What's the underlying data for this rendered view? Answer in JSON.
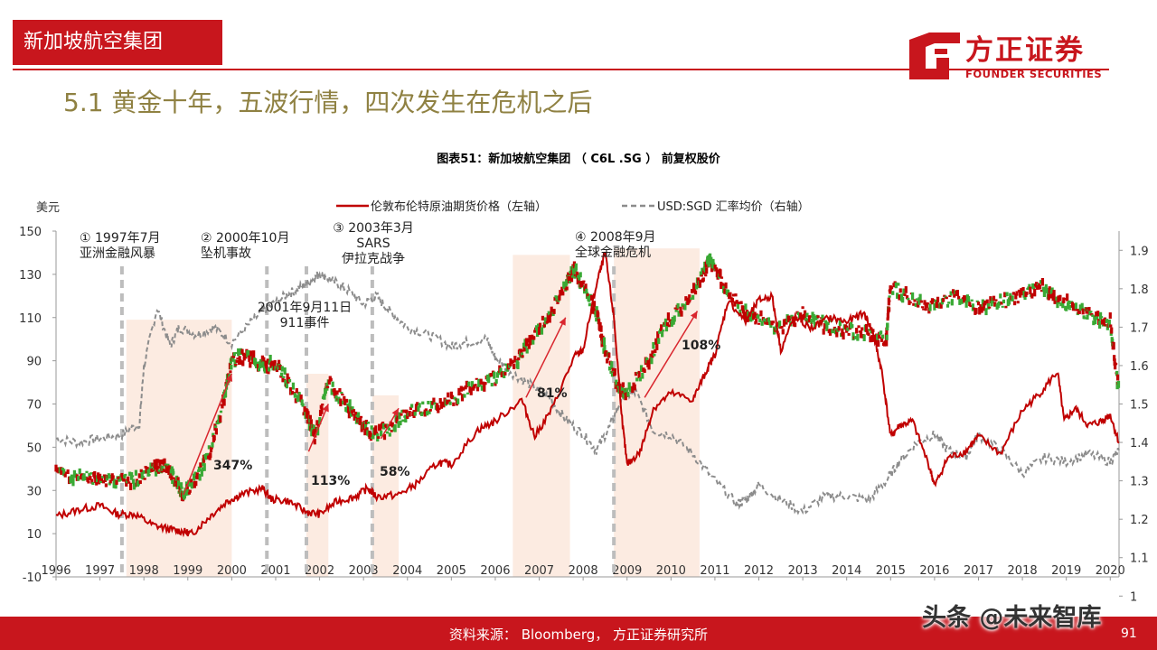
{
  "header": {
    "section_title": "新加坡航空集团",
    "logo_cn": "方正证券",
    "logo_en": "FOUNDER SECURITIES",
    "brand_color": "#c8161d"
  },
  "subtitle": "5.1 黄金十年，五波行情，四次发生在危机之后",
  "chart_title": "图表51：新加坡航空集团 （ C6L .SG ） 前复权股价",
  "footer": {
    "source": "资料来源：  Bloomberg，   方正证券研究所",
    "page": "91",
    "watermark": "头条 @未来智库"
  },
  "chart_data": {
    "type": "line",
    "left_axis_unit": "美元",
    "left_ylim": [
      -10,
      150
    ],
    "left_ticks": [
      "150",
      "130",
      "110",
      "90",
      "70",
      "50",
      "30",
      "10",
      "-10"
    ],
    "right_ylim": [
      1.05,
      1.95
    ],
    "right_ticks": [
      "1.9",
      "1.8",
      "1.7",
      "1.6",
      "1.5",
      "1.4",
      "1.3",
      "1.2",
      "1.1",
      "1"
    ],
    "x_ticks": [
      "1996",
      "1997",
      "1998",
      "1999",
      "2000",
      "2001",
      "2002",
      "2003",
      "2004",
      "2005",
      "2006",
      "2007",
      "2008",
      "2009",
      "2010",
      "2011",
      "2012",
      "2013",
      "2014",
      "2015",
      "2016",
      "2017",
      "2018",
      "2019",
      "2020"
    ],
    "legend": [
      {
        "label": "伦敦布伦特原油期货价格（左轴）",
        "color": "#c00000",
        "style": "solid"
      },
      {
        "label": "USD:SGD 汇率均价（右轴）",
        "color": "#8c8c8c",
        "style": "dashed"
      }
    ],
    "series": [
      {
        "name": "伦敦布伦特原油期货价格（左轴）",
        "axis": "left",
        "x": [
          1996.0,
          1996.5,
          1997.0,
          1997.4,
          1997.8,
          1998.2,
          1998.6,
          1998.9,
          1999.1,
          1999.5,
          1999.9,
          2000.2,
          2000.7,
          2000.9,
          2001.3,
          2001.7,
          2002.0,
          2002.4,
          2002.8,
          2003.1,
          2003.3,
          2003.8,
          2004.2,
          2004.7,
          2005.0,
          2005.6,
          2006.0,
          2006.6,
          2006.9,
          2007.3,
          2007.8,
          2008.0,
          2008.3,
          2008.5,
          2008.7,
          2008.9,
          2009.0,
          2009.3,
          2009.6,
          2010.0,
          2010.5,
          2010.8,
          2011.0,
          2011.3,
          2011.7,
          2012.0,
          2012.3,
          2012.5,
          2012.8,
          2013.2,
          2013.6,
          2014.0,
          2014.4,
          2014.6,
          2014.8,
          2015.0,
          2015.2,
          2015.5,
          2015.9,
          2016.0,
          2016.3,
          2016.7,
          2017.0,
          2017.5,
          2018.0,
          2018.4,
          2018.8,
          2018.95,
          2019.2,
          2019.5,
          2019.8,
          2020.0,
          2020.2
        ],
        "values": [
          18,
          21,
          23,
          19,
          19,
          14,
          12,
          11,
          10,
          18,
          25,
          28,
          31,
          26,
          25,
          20,
          19,
          25,
          27,
          31,
          27,
          28,
          33,
          43,
          42,
          58,
          62,
          72,
          55,
          68,
          92,
          95,
          125,
          140,
          110,
          60,
          42,
          48,
          68,
          75,
          72,
          85,
          93,
          118,
          108,
          118,
          120,
          95,
          110,
          105,
          110,
          108,
          112,
          103,
          85,
          55,
          60,
          62,
          40,
          32,
          45,
          48,
          55,
          47,
          67,
          75,
          85,
          62,
          68,
          60,
          62,
          65,
          52
        ]
      },
      {
        "name": "USD:SGD 汇率均价（右轴）",
        "axis": "right",
        "x": [
          1996.0,
          1996.5,
          1997.0,
          1997.5,
          1997.9,
          1998.0,
          1998.3,
          1998.6,
          1998.8,
          1999.2,
          1999.6,
          2000.0,
          2000.5,
          2000.8,
          2001.2,
          2001.5,
          2001.8,
          2002.0,
          2002.3,
          2002.6,
          2003.0,
          2003.3,
          2003.6,
          2004.0,
          2004.5,
          2005.0,
          2005.3,
          2005.8,
          2006.0,
          2006.4,
          2006.8,
          2007.2,
          2007.6,
          2008.0,
          2008.3,
          2008.6,
          2008.9,
          2009.2,
          2009.6,
          2010.0,
          2010.5,
          2011.0,
          2011.5,
          2011.7,
          2012.0,
          2012.5,
          2013.0,
          2013.5,
          2014.0,
          2014.5,
          2014.9,
          2015.2,
          2015.6,
          2016.0,
          2016.3,
          2016.7,
          2017.0,
          2017.5,
          2018.0,
          2018.5,
          2019.0,
          2019.5,
          2020.0,
          2020.2
        ],
        "values": [
          1.41,
          1.4,
          1.41,
          1.42,
          1.45,
          1.6,
          1.75,
          1.65,
          1.7,
          1.68,
          1.7,
          1.66,
          1.72,
          1.75,
          1.78,
          1.8,
          1.82,
          1.84,
          1.82,
          1.8,
          1.76,
          1.78,
          1.74,
          1.7,
          1.68,
          1.65,
          1.66,
          1.67,
          1.62,
          1.58,
          1.55,
          1.52,
          1.46,
          1.42,
          1.38,
          1.44,
          1.52,
          1.53,
          1.43,
          1.42,
          1.37,
          1.3,
          1.24,
          1.25,
          1.29,
          1.25,
          1.22,
          1.26,
          1.26,
          1.25,
          1.3,
          1.35,
          1.4,
          1.42,
          1.38,
          1.36,
          1.42,
          1.38,
          1.32,
          1.36,
          1.35,
          1.37,
          1.35,
          1.38
        ]
      },
      {
        "name": "新加坡航空集团前复权股价",
        "axis": "left",
        "x": [
          1996.0,
          1996.6,
          1997.0,
          1997.4,
          1997.8,
          1998.2,
          1998.5,
          1998.7,
          1998.9,
          1999.2,
          1999.5,
          1999.8,
          2000.0,
          2000.3,
          2000.7,
          2001.0,
          2001.3,
          2001.7,
          2001.9,
          2002.2,
          2002.6,
          2002.9,
          2003.2,
          2003.6,
          2004.0,
          2004.5,
          2005.0,
          2005.5,
          2006.0,
          2006.5,
          2006.8,
          2007.2,
          2007.6,
          2007.8,
          2008.0,
          2008.3,
          2008.5,
          2008.8,
          2009.0,
          2009.5,
          2009.9,
          2010.3,
          2010.7,
          2010.9,
          2011.2,
          2011.7,
          2012.0,
          2012.5,
          2013.0,
          2013.5,
          2014.0,
          2014.5,
          2014.9,
          2015.0,
          2015.5,
          2016.0,
          2016.5,
          2017.0,
          2017.5,
          2018.0,
          2018.4,
          2018.8,
          2019.2,
          2019.6,
          2020.0,
          2020.2
        ],
        "values": [
          38,
          36,
          35,
          34,
          35,
          40,
          42,
          35,
          28,
          35,
          48,
          70,
          90,
          92,
          88,
          88,
          80,
          66,
          55,
          80,
          70,
          62,
          57,
          58,
          67,
          68,
          72,
          78,
          82,
          90,
          100,
          110,
          125,
          132,
          125,
          112,
          95,
          78,
          75,
          90,
          108,
          115,
          128,
          137,
          125,
          112,
          110,
          105,
          112,
          106,
          104,
          102,
          100,
          125,
          118,
          115,
          120,
          115,
          117,
          120,
          125,
          118,
          115,
          110,
          108,
          75
        ]
      }
    ],
    "annotations": [
      {
        "line1": "① 1997年7月",
        "line2": "亚洲金融风暴",
        "year": 1997.5
      },
      {
        "line1": "② 2000年10月",
        "line2": "坠机事故",
        "year": 2000.8
      },
      {
        "line1": "2001年9月11日",
        "line2": "911事件",
        "year": 2001.7
      },
      {
        "line1": "③ 2003年3月",
        "line2": "SARS",
        "line3": "伊拉克战争",
        "year": 2003.2
      },
      {
        "line1": "④ 2008年9月",
        "line2": "全球金融危机",
        "year": 2008.7
      }
    ],
    "rally_shading": [
      [
        1997.6,
        2000.0
      ],
      [
        2001.7,
        2002.2
      ],
      [
        2003.2,
        2003.8
      ],
      [
        2006.4,
        2007.7
      ],
      [
        2008.7,
        2010.65
      ]
    ],
    "rally_labels": [
      {
        "text": "347%",
        "from": [
          1998.9,
          28
        ],
        "to": [
          2000.0,
          84
        ]
      },
      {
        "text": "113%",
        "from": [
          2001.75,
          48
        ],
        "to": [
          2002.2,
          70
        ]
      },
      {
        "text": "58%",
        "from": [
          2003.4,
          54
        ],
        "to": [
          2003.8,
          68
        ]
      },
      {
        "text": "81%",
        "from": [
          2006.7,
          73
        ],
        "to": [
          2007.6,
          110
        ]
      },
      {
        "text": "108%",
        "from": [
          2009.4,
          73
        ],
        "to": [
          2010.6,
          113
        ]
      }
    ],
    "crisis_lines": [
      1997.5,
      2000.8,
      2001.7,
      2003.2,
      2008.7
    ]
  }
}
